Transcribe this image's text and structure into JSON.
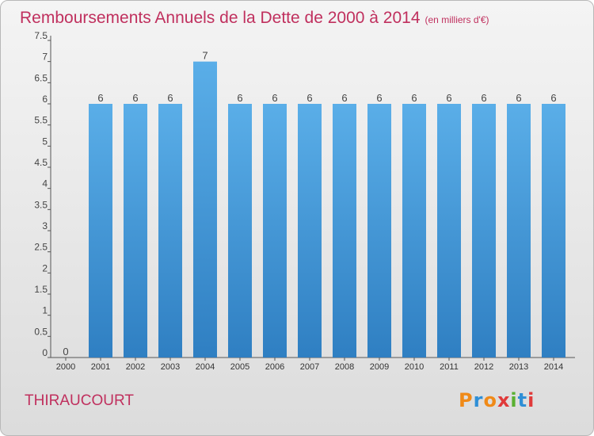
{
  "chart_data": {
    "type": "bar",
    "title": "Remboursements Annuels de la Dette de 2000 à 2014",
    "unit": "(en milliers d'€)",
    "categories": [
      "2000",
      "2001",
      "2002",
      "2003",
      "2004",
      "2005",
      "2006",
      "2007",
      "2008",
      "2009",
      "2010",
      "2011",
      "2012",
      "2013",
      "2014"
    ],
    "values": [
      0,
      6,
      6,
      6,
      7,
      6,
      6,
      6,
      6,
      6,
      6,
      6,
      6,
      6,
      6
    ],
    "data_labels": [
      "0",
      "6",
      "6",
      "6",
      "7",
      "6",
      "6",
      "6",
      "6",
      "6",
      "6",
      "6",
      "6",
      "6",
      "6"
    ],
    "ylim": [
      0,
      7.5
    ],
    "yticks": [
      0,
      0.5,
      1,
      1.5,
      2,
      2.5,
      3,
      3.5,
      4,
      4.5,
      5,
      5.5,
      6,
      6.5,
      7,
      7.5
    ],
    "ytick_labels": [
      "0",
      "0.5",
      "1",
      "1.5",
      "2",
      "2.5",
      "3",
      "3.5",
      "4",
      "4.5",
      "5",
      "5.5",
      "6",
      "6.5",
      "7",
      "7.5"
    ],
    "xlabel": "",
    "ylabel": "",
    "grid": false,
    "colors": {
      "bar_top": "#5aaee8",
      "bar_bottom": "#2f7fc2",
      "title": "#c0305e"
    }
  },
  "town": "THIRAUCOURT",
  "logo": {
    "text": "Proxiti",
    "letters": [
      {
        "ch": "P",
        "color": "#f08a18"
      },
      {
        "ch": "r",
        "color": "#2f8fd6"
      },
      {
        "ch": "o",
        "color": "#f08a18"
      },
      {
        "ch": "x",
        "color": "#e03a3a"
      },
      {
        "ch": "i",
        "color": "#59b031"
      },
      {
        "ch": "t",
        "color": "#2f8fd6"
      },
      {
        "ch": "i",
        "color": "#e03a3a"
      }
    ]
  }
}
